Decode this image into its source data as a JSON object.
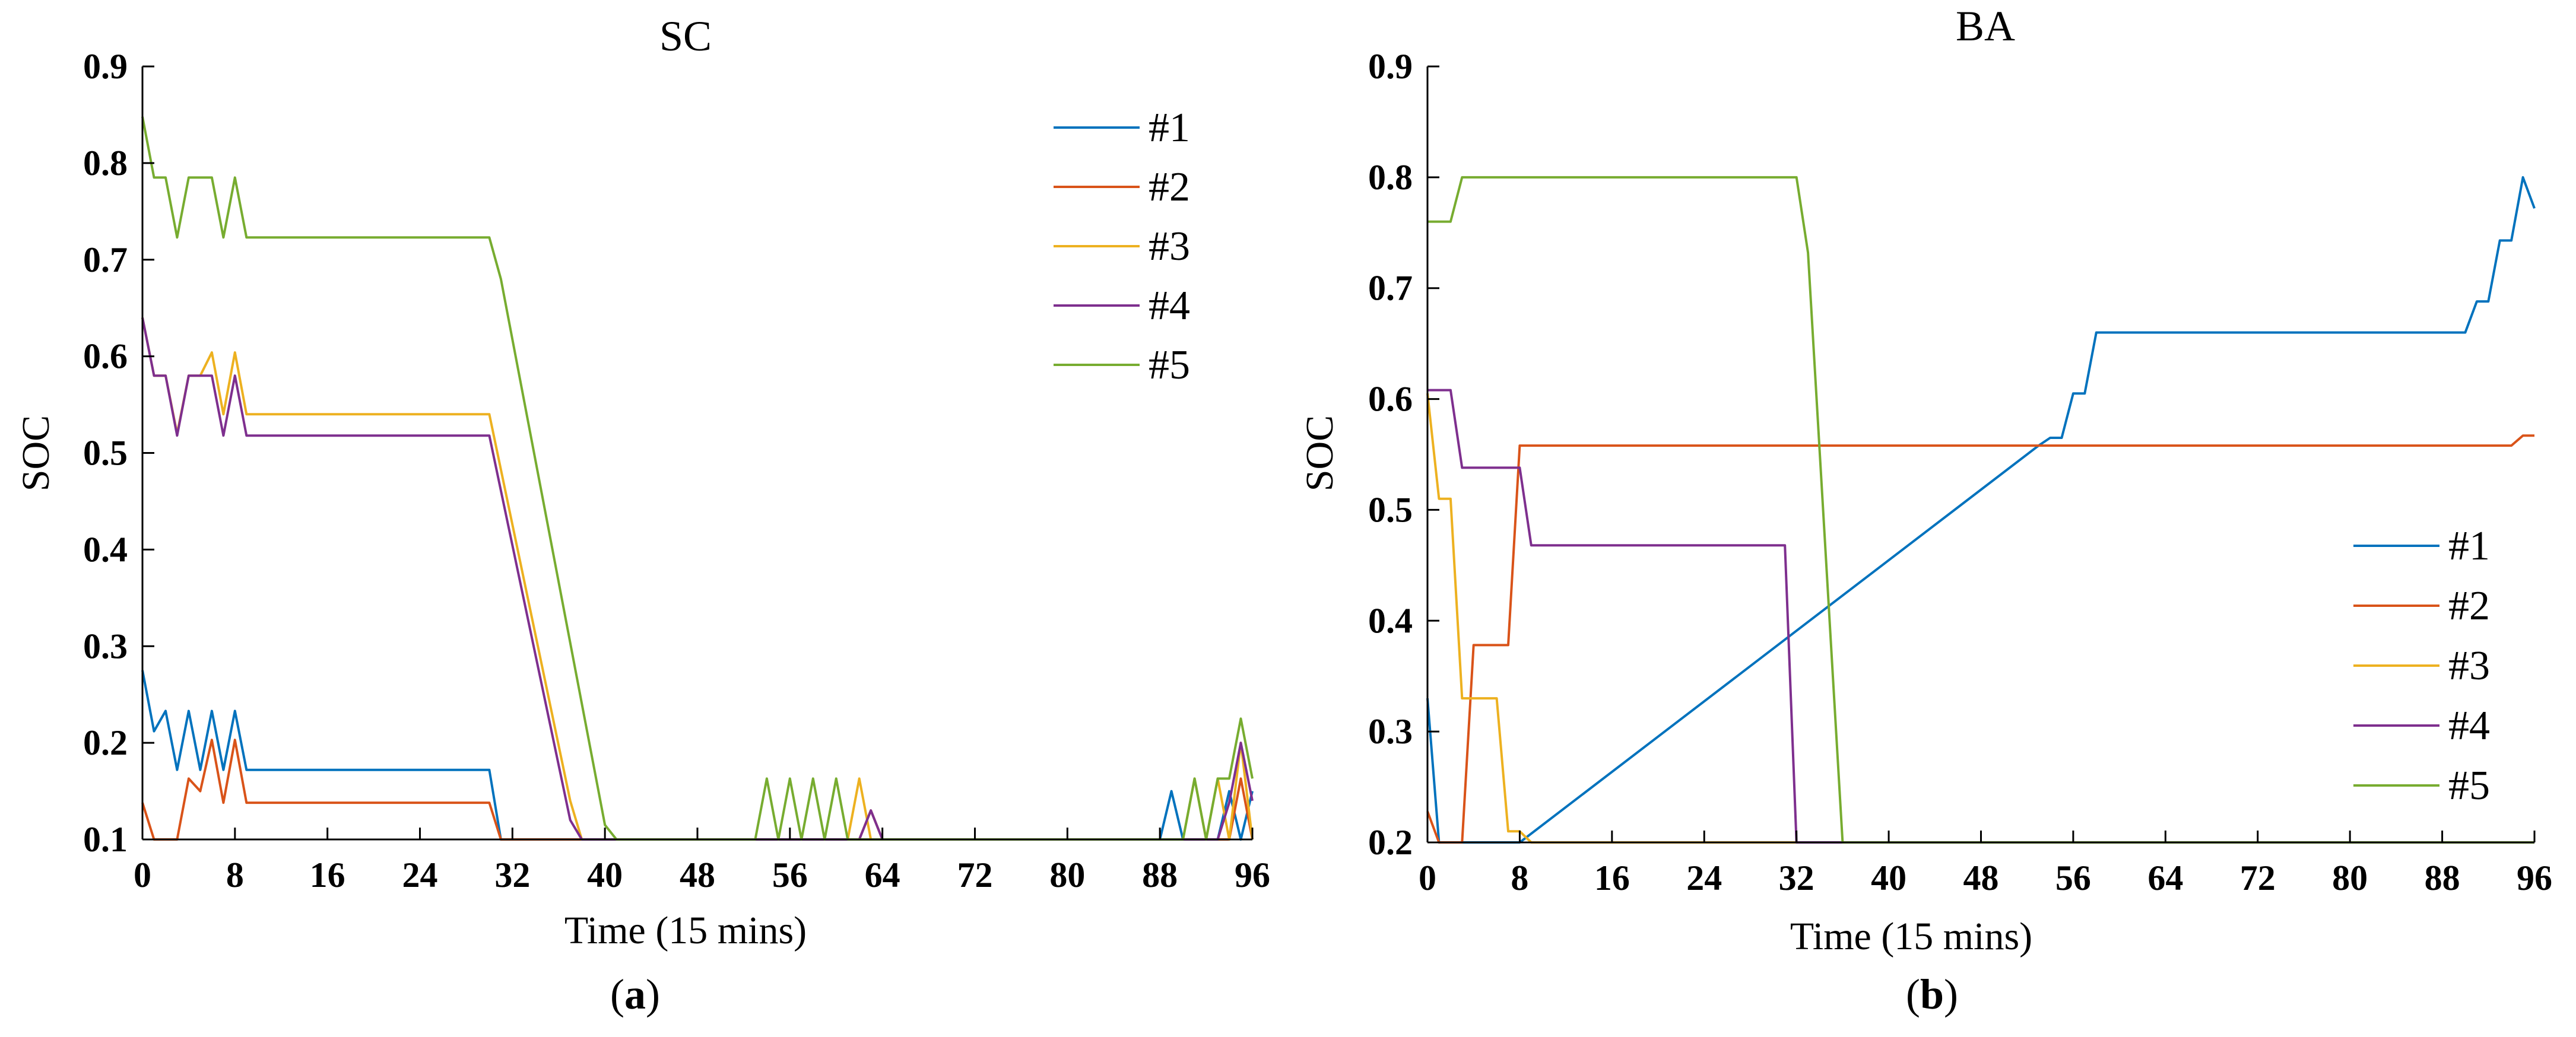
{
  "chart_data": [
    {
      "type": "line",
      "title": "SC",
      "xlabel": "Time (15 mins)",
      "ylabel": "SOC",
      "caption_letter": "a",
      "xlim": [
        0,
        96
      ],
      "ylim": [
        0.1,
        0.9
      ],
      "xticks": [
        0,
        8,
        16,
        24,
        32,
        40,
        48,
        56,
        64,
        72,
        80,
        88,
        96
      ],
      "yticks": [
        0.1,
        0.2,
        0.3,
        0.4,
        0.5,
        0.6,
        0.7,
        0.8,
        0.9
      ],
      "legend_position": "top-right",
      "grid": false,
      "series": [
        {
          "name": "#1",
          "color": "#0072BD",
          "x": [
            0,
            1,
            2,
            3,
            4,
            5,
            6,
            7,
            8,
            9,
            30,
            31,
            35,
            40,
            88,
            89,
            90,
            91,
            92,
            93,
            94,
            95,
            96
          ],
          "y": [
            0.275,
            0.212,
            0.233,
            0.172,
            0.233,
            0.172,
            0.233,
            0.172,
            0.233,
            0.172,
            0.172,
            0.1,
            0.1,
            0.1,
            0.1,
            0.15,
            0.1,
            0.1,
            0.1,
            0.1,
            0.15,
            0.1,
            0.15
          ]
        },
        {
          "name": "#2",
          "color": "#D95319",
          "x": [
            0,
            1,
            2,
            3,
            4,
            5,
            6,
            7,
            8,
            9,
            30,
            31,
            35,
            40,
            62,
            63,
            64,
            88,
            94,
            95,
            96
          ],
          "y": [
            0.138,
            0.1,
            0.1,
            0.1,
            0.163,
            0.15,
            0.203,
            0.138,
            0.203,
            0.138,
            0.138,
            0.1,
            0.1,
            0.1,
            0.1,
            0.13,
            0.1,
            0.1,
            0.1,
            0.163,
            0.1
          ]
        },
        {
          "name": "#3",
          "color": "#EDB120",
          "x": [
            0,
            1,
            2,
            3,
            4,
            5,
            6,
            7,
            8,
            9,
            30,
            37,
            38,
            40,
            61,
            62,
            63,
            64,
            90,
            91,
            92,
            93,
            94,
            95,
            96
          ],
          "y": [
            0.64,
            0.58,
            0.58,
            0.52,
            0.58,
            0.58,
            0.604,
            0.54,
            0.604,
            0.54,
            0.54,
            0.14,
            0.1,
            0.1,
            0.1,
            0.163,
            0.1,
            0.1,
            0.1,
            0.163,
            0.1,
            0.163,
            0.1,
            0.2,
            0.1
          ]
        },
        {
          "name": "#4",
          "color": "#7E2F8E",
          "x": [
            0,
            1,
            2,
            3,
            4,
            5,
            6,
            7,
            8,
            9,
            30,
            37,
            38,
            40,
            62,
            63,
            64,
            93,
            94,
            95,
            96
          ],
          "y": [
            0.64,
            0.58,
            0.58,
            0.518,
            0.58,
            0.58,
            0.58,
            0.518,
            0.58,
            0.518,
            0.518,
            0.12,
            0.1,
            0.1,
            0.1,
            0.13,
            0.1,
            0.1,
            0.138,
            0.2,
            0.14
          ]
        },
        {
          "name": "#5",
          "color": "#77AC30",
          "x": [
            0,
            1,
            2,
            3,
            4,
            5,
            6,
            7,
            8,
            9,
            30,
            31,
            40,
            41,
            53,
            54,
            55,
            56,
            57,
            58,
            59,
            60,
            61,
            62,
            88,
            89,
            90,
            91,
            92,
            93,
            94,
            95,
            96
          ],
          "y": [
            0.848,
            0.785,
            0.785,
            0.723,
            0.785,
            0.785,
            0.785,
            0.723,
            0.785,
            0.723,
            0.723,
            0.68,
            0.115,
            0.1,
            0.1,
            0.163,
            0.1,
            0.163,
            0.1,
            0.163,
            0.1,
            0.163,
            0.1,
            0.1,
            0.1,
            0.1,
            0.1,
            0.163,
            0.1,
            0.163,
            0.163,
            0.225,
            0.163
          ]
        }
      ]
    },
    {
      "type": "line",
      "title": "BA",
      "xlabel": "Time (15 mins)",
      "ylabel": "SOC",
      "caption_letter": "b",
      "xlim": [
        0,
        96
      ],
      "ylim": [
        0.2,
        0.9
      ],
      "xticks": [
        0,
        8,
        16,
        24,
        32,
        40,
        48,
        56,
        64,
        72,
        80,
        88,
        96
      ],
      "yticks": [
        0.2,
        0.3,
        0.4,
        0.5,
        0.6,
        0.7,
        0.8,
        0.9
      ],
      "legend_position": "bottom-right",
      "grid": false,
      "series": [
        {
          "name": "#1",
          "color": "#0072BD",
          "x": [
            0,
            1,
            2,
            3,
            8,
            53,
            54,
            55,
            56,
            57,
            58,
            90,
            91,
            92,
            93,
            94,
            95,
            96
          ],
          "y": [
            0.33,
            0.2,
            0.2,
            0.2,
            0.2,
            0.558,
            0.565,
            0.565,
            0.605,
            0.605,
            0.66,
            0.66,
            0.688,
            0.688,
            0.743,
            0.743,
            0.8,
            0.772
          ]
        },
        {
          "name": "#2",
          "color": "#D95319",
          "x": [
            0,
            1,
            2,
            3,
            4,
            5,
            6,
            7,
            8,
            9,
            94,
            95,
            96
          ],
          "y": [
            0.228,
            0.2,
            0.2,
            0.2,
            0.378,
            0.378,
            0.378,
            0.378,
            0.558,
            0.558,
            0.558,
            0.567,
            0.567
          ]
        },
        {
          "name": "#3",
          "color": "#EDB120",
          "x": [
            0,
            1,
            2,
            3,
            4,
            5,
            6,
            7,
            8,
            9,
            96
          ],
          "y": [
            0.605,
            0.51,
            0.51,
            0.33,
            0.33,
            0.33,
            0.33,
            0.21,
            0.21,
            0.2,
            0.2
          ]
        },
        {
          "name": "#4",
          "color": "#7E2F8E",
          "x": [
            0,
            1,
            2,
            3,
            4,
            5,
            6,
            7,
            8,
            9,
            10,
            31,
            32,
            33,
            96
          ],
          "y": [
            0.608,
            0.608,
            0.608,
            0.538,
            0.538,
            0.538,
            0.538,
            0.538,
            0.538,
            0.468,
            0.468,
            0.468,
            0.2,
            0.2,
            0.2
          ]
        },
        {
          "name": "#5",
          "color": "#77AC30",
          "x": [
            0,
            1,
            2,
            3,
            4,
            5,
            32,
            33,
            36,
            96
          ],
          "y": [
            0.76,
            0.76,
            0.76,
            0.8,
            0.8,
            0.8,
            0.8,
            0.732,
            0.2,
            0.2
          ]
        }
      ]
    }
  ]
}
